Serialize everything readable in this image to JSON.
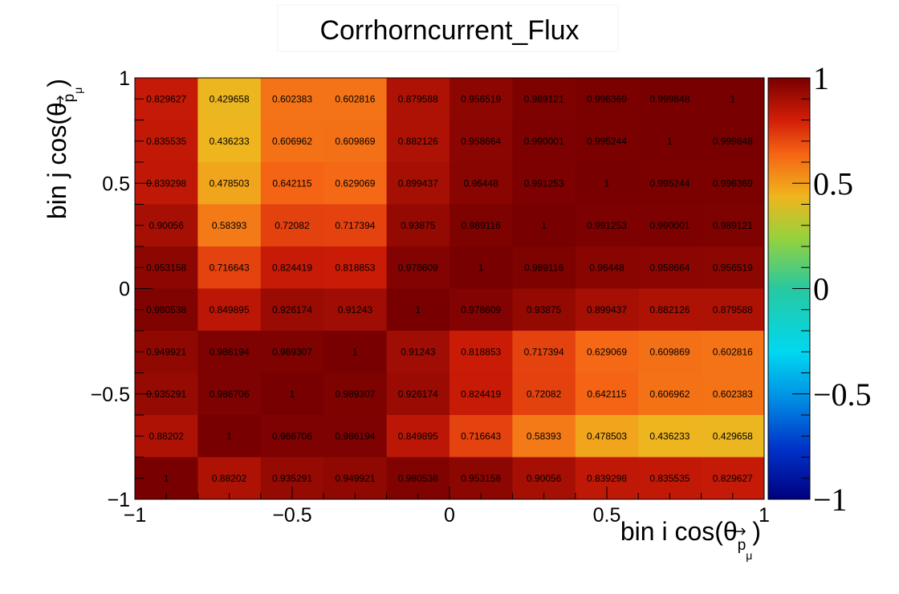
{
  "chart_data": {
    "type": "heatmap",
    "title": "Corrhorncurrent_Flux",
    "xlabel": {
      "prefix": "bin i cos(θ",
      "sub": "p",
      "subsub": "μ",
      "suffix": ")"
    },
    "ylabel": {
      "prefix": "bin j cos(θ",
      "sub": "p",
      "subsub": "μ",
      "suffix": ")"
    },
    "x_range": [
      -1,
      1
    ],
    "y_range": [
      -1,
      1
    ],
    "z_range": [
      -1,
      1
    ],
    "nbins_x": 10,
    "nbins_y": 10,
    "x_ticks": [
      {
        "value": -1,
        "label": "−1"
      },
      {
        "value": -0.5,
        "label": "−0.5"
      },
      {
        "value": 0,
        "label": "0"
      },
      {
        "value": 0.5,
        "label": "0.5"
      },
      {
        "value": 1,
        "label": "1"
      }
    ],
    "y_ticks": [
      {
        "value": -1,
        "label": "−1"
      },
      {
        "value": -0.5,
        "label": "−0.5"
      },
      {
        "value": 0,
        "label": "0"
      },
      {
        "value": 0.5,
        "label": "0.5"
      },
      {
        "value": 1,
        "label": "1"
      }
    ],
    "z_ticks": [
      {
        "value": -1,
        "label": "−1"
      },
      {
        "value": -0.5,
        "label": "−0.5"
      },
      {
        "value": 0,
        "label": "0"
      },
      {
        "value": 0.5,
        "label": "0.5"
      },
      {
        "value": 1,
        "label": "1"
      }
    ],
    "rows_top_to_bottom": [
      [
        "0.829627",
        "0.429658",
        "0.602383",
        "0.602816",
        "0.879588",
        "0.956519",
        "0.989121",
        "0.996369",
        "0.999848",
        "1"
      ],
      [
        "0.835535",
        "0.436233",
        "0.606962",
        "0.609869",
        "0.882126",
        "0.958664",
        "0.990001",
        "0.995244",
        "1",
        "0.999848"
      ],
      [
        "0.839298",
        "0.478503",
        "0.642115",
        "0.629069",
        "0.899437",
        "0.96448",
        "0.991253",
        "1",
        "0.995244",
        "0.996369"
      ],
      [
        "0.90056",
        "0.58393",
        "0.72082",
        "0.717394",
        "0.93875",
        "0.989116",
        "1",
        "0.991253",
        "0.990001",
        "0.989121"
      ],
      [
        "0.953158",
        "0.716643",
        "0.824419",
        "0.818853",
        "0.978609",
        "1",
        "0.989116",
        "0.96448",
        "0.958664",
        "0.956519"
      ],
      [
        "0.980538",
        "0.849895",
        "0.926174",
        "0.91243",
        "1",
        "0.978609",
        "0.93875",
        "0.899437",
        "0.882126",
        "0.879588"
      ],
      [
        "0.949921",
        "0.986194",
        "0.989307",
        "1",
        "0.91243",
        "0.818853",
        "0.717394",
        "0.629069",
        "0.609869",
        "0.602816"
      ],
      [
        "0.935291",
        "0.986706",
        "1",
        "0.989307",
        "0.926174",
        "0.824419",
        "0.72082",
        "0.642115",
        "0.606962",
        "0.602383"
      ],
      [
        "0.88202",
        "1",
        "0.986706",
        "0.986194",
        "0.849895",
        "0.716643",
        "0.58393",
        "0.478503",
        "0.436233",
        "0.429658"
      ],
      [
        "1",
        "0.88202",
        "0.935291",
        "0.949921",
        "0.980538",
        "0.953158",
        "0.90056",
        "0.839298",
        "0.835535",
        "0.829627"
      ]
    ],
    "palette": "rainbow"
  }
}
